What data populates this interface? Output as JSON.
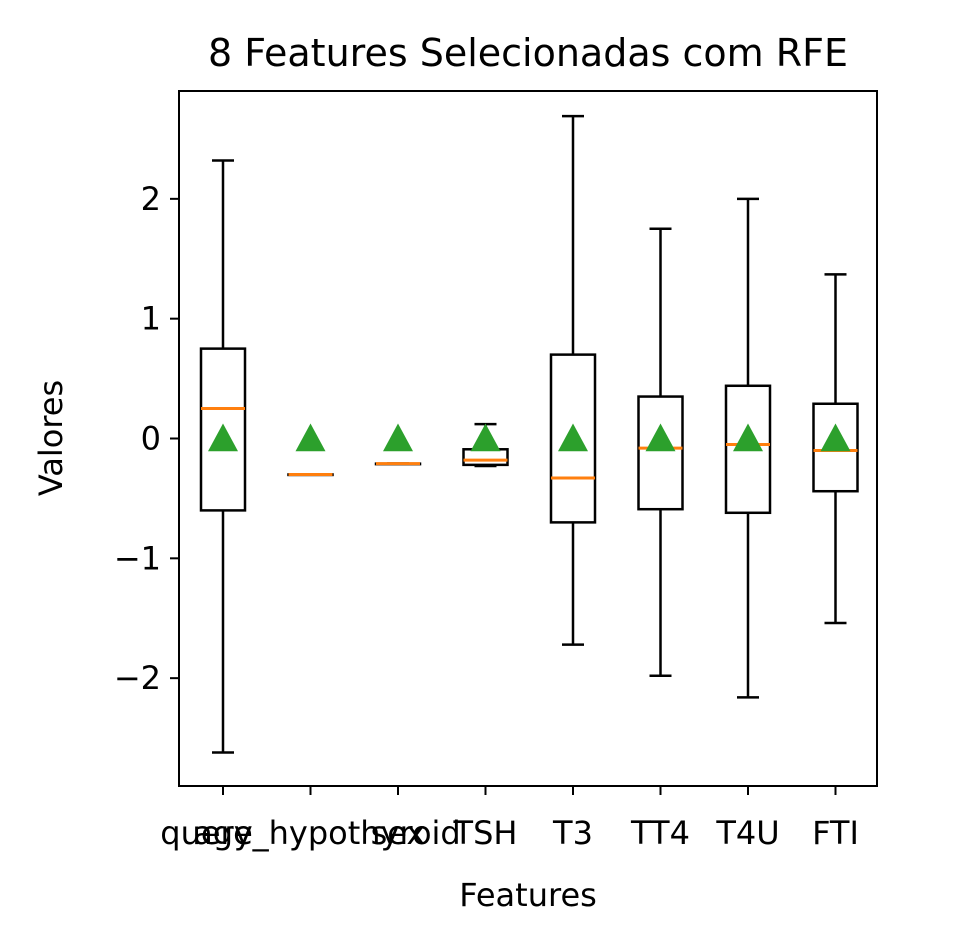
{
  "chart_data": {
    "type": "box",
    "title": "8 Features Selecionadas com RFE",
    "xlabel": "Features",
    "ylabel": "Valores",
    "categories": [
      "age",
      "query_hypothyroid",
      "sex",
      "TSH",
      "T3",
      "TT4",
      "T4U",
      "FTI"
    ],
    "x_tick_labels": [
      "age",
      "query_hypothyroid",
      "sex",
      "TSH",
      "T3",
      "TT4",
      "T4U",
      "FTI"
    ],
    "ylim": [
      -2.9,
      2.9
    ],
    "yticks": [
      -2,
      -1,
      0,
      1,
      2
    ],
    "ytick_labels": [
      "−2",
      "−1",
      "0",
      "1",
      "2"
    ],
    "grid": false,
    "legend": false,
    "colors": {
      "box": "#000000",
      "median": "#ff7f0e",
      "mean": "#2ca02c"
    },
    "boxes": [
      {
        "name": "age",
        "whislo": -2.62,
        "q1": -0.6,
        "med": 0.25,
        "q3": 0.75,
        "whishi": 2.32,
        "mean": 0.0
      },
      {
        "name": "query_hypothyroid",
        "whislo": -0.3,
        "q1": -0.3,
        "med": -0.3,
        "q3": -0.3,
        "whishi": -0.3,
        "mean": 0.0
      },
      {
        "name": "sex",
        "whislo": -0.21,
        "q1": -0.21,
        "med": -0.21,
        "q3": -0.21,
        "whishi": -0.21,
        "mean": 0.0
      },
      {
        "name": "TSH",
        "whislo": -0.23,
        "q1": -0.22,
        "med": -0.18,
        "q3": -0.09,
        "whishi": 0.12,
        "mean": 0.0
      },
      {
        "name": "T3",
        "whislo": -1.72,
        "q1": -0.7,
        "med": -0.33,
        "q3": 0.7,
        "whishi": 2.69,
        "mean": 0.0
      },
      {
        "name": "TT4",
        "whislo": -1.98,
        "q1": -0.59,
        "med": -0.08,
        "q3": 0.35,
        "whishi": 1.75,
        "mean": 0.0
      },
      {
        "name": "T4U",
        "whislo": -2.16,
        "q1": -0.62,
        "med": -0.05,
        "q3": 0.44,
        "whishi": 2.0,
        "mean": 0.0
      },
      {
        "name": "FTI",
        "whislo": -1.54,
        "q1": -0.44,
        "med": -0.1,
        "q3": 0.29,
        "whishi": 1.37,
        "mean": 0.0
      }
    ]
  }
}
